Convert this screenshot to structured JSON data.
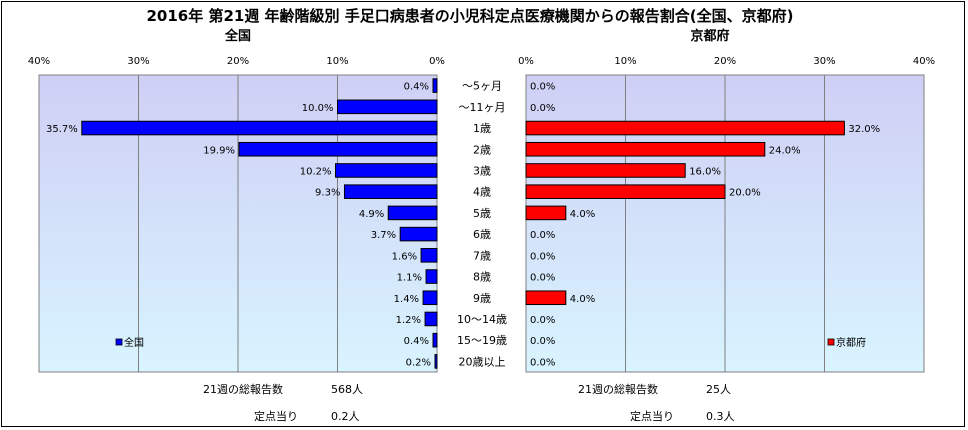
{
  "title": "2016年 第21週 年齢階級別 手足口病患者の小児科定点医療機関からの報告割合(全国、京都府)",
  "chart_data": [
    {
      "type": "bar",
      "orientation": "horizontal",
      "title": "全国",
      "categories": [
        "～5ヶ月",
        "～11ヶ月",
        "1歳",
        "2歳",
        "3歳",
        "4歳",
        "5歳",
        "6歳",
        "7歳",
        "8歳",
        "9歳",
        "10～14歳",
        "15～19歳",
        "20歳以上"
      ],
      "series": [
        {
          "name": "全国",
          "values": [
            0.4,
            10.0,
            35.7,
            19.9,
            10.2,
            9.3,
            4.9,
            3.7,
            1.6,
            1.1,
            1.4,
            1.2,
            0.4,
            0.2
          ]
        }
      ],
      "value_labels": [
        "0.4%",
        "10.0%",
        "35.7%",
        "19.9%",
        "10.2%",
        "9.3%",
        "4.9%",
        "3.7%",
        "1.6%",
        "1.1%",
        "1.4%",
        "1.2%",
        "0.4%",
        "0.2%"
      ],
      "xlim": [
        0,
        40
      ],
      "x_direction": "reversed",
      "x_ticks": [
        "40%",
        "30%",
        "20%",
        "10%",
        "0%"
      ],
      "grid": true,
      "legend_position": "bottom-left",
      "colors": {
        "bar": "#0000ff",
        "plot_bg_top": "#cfcff5",
        "plot_bg_bottom": "#d8f4ff"
      }
    },
    {
      "type": "bar",
      "orientation": "horizontal",
      "title": "京都府",
      "categories": [
        "～5ヶ月",
        "～11ヶ月",
        "1歳",
        "2歳",
        "3歳",
        "4歳",
        "5歳",
        "6歳",
        "7歳",
        "8歳",
        "9歳",
        "10～14歳",
        "15～19歳",
        "20歳以上"
      ],
      "series": [
        {
          "name": "京都府",
          "values": [
            0,
            0,
            32.0,
            24.0,
            16.0,
            20.0,
            4.0,
            0,
            0,
            0,
            4.0,
            0,
            0,
            0
          ]
        }
      ],
      "value_labels": [
        "0.0%",
        "0.0%",
        "32.0%",
        "24.0%",
        "16.0%",
        "20.0%",
        "4.0%",
        "0.0%",
        "0.0%",
        "0.0%",
        "4.0%",
        "0.0%",
        "0.0%",
        "0.0%"
      ],
      "xlim": [
        0,
        40
      ],
      "x_ticks": [
        "0%",
        "10%",
        "20%",
        "30%",
        "40%"
      ],
      "grid": true,
      "legend_position": "bottom-right",
      "colors": {
        "bar": "#ff0000",
        "plot_bg_top": "#cfcff5",
        "plot_bg_bottom": "#d8f4ff"
      }
    }
  ],
  "footer": {
    "national": {
      "total_label": "21週の総報告数",
      "total_value": "568人",
      "per_site_label": "定点当り",
      "per_site_value": "0.2人"
    },
    "kyoto": {
      "total_label": "21週の総報告数",
      "total_value": "25人",
      "per_site_label": "定点当り",
      "per_site_value": "0.3人"
    }
  }
}
